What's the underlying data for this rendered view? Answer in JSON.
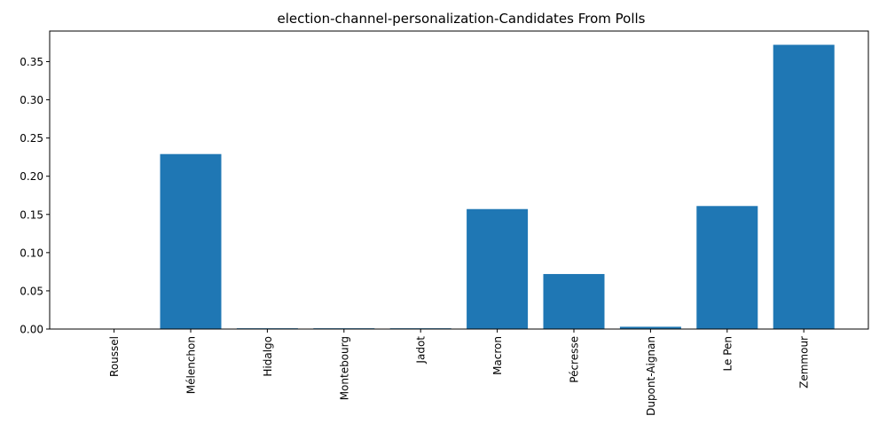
{
  "chart_data": {
    "type": "bar",
    "title": "election-channel-personalization-Candidates From Polls",
    "xlabel": "",
    "ylabel": "",
    "categories": [
      "Roussel",
      "Mélenchon",
      "Hidalgo",
      "Montebourg",
      "Jadot",
      "Macron",
      "Pécresse",
      "Dupont-Aignan",
      "Le Pen",
      "Zemmour"
    ],
    "values": [
      0.0,
      0.229,
      0.001,
      0.001,
      0.001,
      0.157,
      0.072,
      0.003,
      0.161,
      0.372
    ],
    "ylim": [
      0,
      0.39
    ],
    "yticks": [
      0.0,
      0.05,
      0.1,
      0.15,
      0.2,
      0.25,
      0.3,
      0.35
    ],
    "ytick_labels": [
      "0.00",
      "0.05",
      "0.10",
      "0.15",
      "0.20",
      "0.25",
      "0.30",
      "0.35"
    ],
    "bar_color": "#1f77b4",
    "grid": false,
    "legend": "none"
  }
}
